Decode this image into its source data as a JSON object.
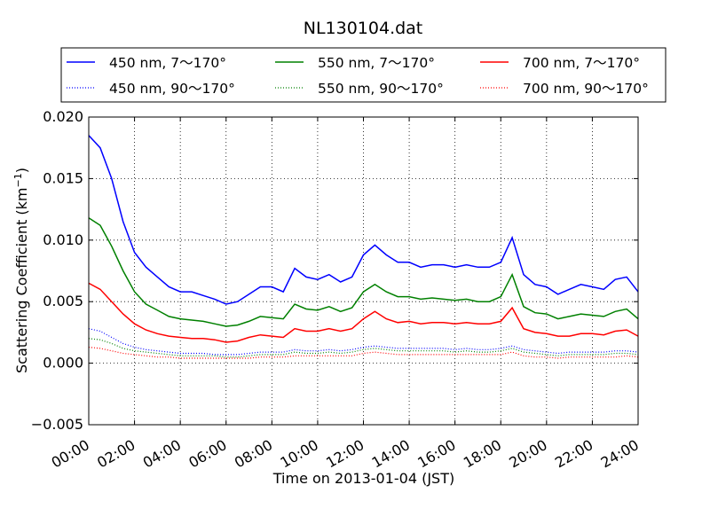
{
  "chart_data": {
    "type": "line",
    "title": "NL130104.dat",
    "xlabel": "Time on 2013-01-04 (JST)",
    "ylabel": "Scattering Coefficient (km",
    "ylabel_sup": "−1",
    "ylabel_close": ")",
    "xlim": [
      0,
      24
    ],
    "ylim": [
      -0.005,
      0.02
    ],
    "x_unit": "hours",
    "grid": true,
    "grid_style": "dotted",
    "legend_placement": "top, above plot, 3 columns",
    "x_ticks": [
      {
        "value": 0,
        "label": "00:00"
      },
      {
        "value": 2,
        "label": "02:00"
      },
      {
        "value": 4,
        "label": "04:00"
      },
      {
        "value": 6,
        "label": "06:00"
      },
      {
        "value": 8,
        "label": "08:00"
      },
      {
        "value": 10,
        "label": "10:00"
      },
      {
        "value": 12,
        "label": "12:00"
      },
      {
        "value": 14,
        "label": "14:00"
      },
      {
        "value": 16,
        "label": "16:00"
      },
      {
        "value": 18,
        "label": "18:00"
      },
      {
        "value": 20,
        "label": "20:00"
      },
      {
        "value": 22,
        "label": "22:00"
      },
      {
        "value": 24,
        "label": "24:00"
      }
    ],
    "y_ticks": [
      {
        "value": -0.005,
        "label": "−0.005"
      },
      {
        "value": 0,
        "label": "0.000"
      },
      {
        "value": 0.005,
        "label": "0.005"
      },
      {
        "value": 0.01,
        "label": "0.010"
      },
      {
        "value": 0.015,
        "label": "0.015"
      },
      {
        "value": 0.02,
        "label": "0.020"
      }
    ],
    "x": [
      0,
      0.5,
      1,
      1.5,
      2,
      2.5,
      3,
      3.5,
      4,
      4.5,
      5,
      5.5,
      6,
      6.5,
      7,
      7.5,
      8,
      8.5,
      9,
      9.5,
      10,
      10.5,
      11,
      11.5,
      12,
      12.5,
      13,
      13.5,
      14,
      14.5,
      15,
      15.5,
      16,
      16.5,
      17,
      17.5,
      18,
      18.5,
      19,
      19.5,
      20,
      20.5,
      21,
      21.5,
      22,
      22.5,
      23,
      23.5,
      24
    ],
    "series": [
      {
        "name": "450 nm, 7～170°",
        "color": "#0000ff",
        "style": "solid",
        "values": [
          0.0185,
          0.0175,
          0.015,
          0.0115,
          0.009,
          0.0078,
          0.007,
          0.0062,
          0.0058,
          0.0058,
          0.0055,
          0.0052,
          0.0048,
          0.005,
          0.0056,
          0.0062,
          0.0062,
          0.0058,
          0.0077,
          0.007,
          0.0068,
          0.0072,
          0.0066,
          0.007,
          0.0088,
          0.0096,
          0.0088,
          0.0082,
          0.0082,
          0.0078,
          0.008,
          0.008,
          0.0078,
          0.008,
          0.0078,
          0.0078,
          0.0082,
          0.0102,
          0.0072,
          0.0064,
          0.0062,
          0.0056,
          0.006,
          0.0064,
          0.0062,
          0.006,
          0.0068,
          0.007,
          0.0058
        ]
      },
      {
        "name": "450 nm, 90～170°",
        "color": "#0000ff",
        "style": "dotted",
        "values": [
          0.0028,
          0.0026,
          0.0021,
          0.0016,
          0.0013,
          0.0011,
          0.001,
          0.0009,
          0.0008,
          0.0008,
          0.0008,
          0.0007,
          0.0007,
          0.0007,
          0.0008,
          0.0009,
          0.0009,
          0.0009,
          0.0011,
          0.001,
          0.001,
          0.0011,
          0.001,
          0.0011,
          0.0013,
          0.0014,
          0.0013,
          0.0012,
          0.0012,
          0.0012,
          0.0012,
          0.0012,
          0.0011,
          0.0012,
          0.0011,
          0.0011,
          0.0012,
          0.0014,
          0.0011,
          0.001,
          0.0009,
          0.0008,
          0.0009,
          0.0009,
          0.0009,
          0.0009,
          0.001,
          0.001,
          0.0009
        ]
      },
      {
        "name": "550 nm, 7～170°",
        "color": "#008000",
        "style": "solid",
        "values": [
          0.0118,
          0.0112,
          0.0095,
          0.0075,
          0.0058,
          0.0048,
          0.0043,
          0.0038,
          0.0036,
          0.0035,
          0.0034,
          0.0032,
          0.003,
          0.0031,
          0.0034,
          0.0038,
          0.0037,
          0.0036,
          0.0048,
          0.0044,
          0.0043,
          0.0046,
          0.0042,
          0.0045,
          0.0058,
          0.0064,
          0.0058,
          0.0054,
          0.0054,
          0.0052,
          0.0053,
          0.0052,
          0.0051,
          0.0052,
          0.005,
          0.005,
          0.0054,
          0.0072,
          0.0046,
          0.0041,
          0.004,
          0.0036,
          0.0038,
          0.004,
          0.0039,
          0.0038,
          0.0042,
          0.0044,
          0.0036
        ]
      },
      {
        "name": "550 nm, 90～170°",
        "color": "#008000",
        "style": "dotted",
        "values": [
          0.002,
          0.0019,
          0.0016,
          0.0012,
          0.001,
          0.0009,
          0.0008,
          0.0007,
          0.0006,
          0.0006,
          0.0006,
          0.0006,
          0.0005,
          0.0005,
          0.0006,
          0.0007,
          0.0007,
          0.0007,
          0.0009,
          0.0008,
          0.0008,
          0.0009,
          0.0008,
          0.0009,
          0.0011,
          0.0012,
          0.0011,
          0.001,
          0.001,
          0.001,
          0.001,
          0.001,
          0.0009,
          0.001,
          0.0009,
          0.0009,
          0.001,
          0.0012,
          0.0009,
          0.0008,
          0.0007,
          0.0006,
          0.0007,
          0.0007,
          0.0007,
          0.0007,
          0.0008,
          0.0008,
          0.0007
        ]
      },
      {
        "name": "700 nm, 7～170°",
        "color": "#ff0000",
        "style": "solid",
        "values": [
          0.0065,
          0.006,
          0.005,
          0.004,
          0.0032,
          0.0027,
          0.0024,
          0.0022,
          0.0021,
          0.002,
          0.002,
          0.0019,
          0.0017,
          0.0018,
          0.0021,
          0.0023,
          0.0022,
          0.0021,
          0.0028,
          0.0026,
          0.0026,
          0.0028,
          0.0026,
          0.0028,
          0.0036,
          0.0042,
          0.0036,
          0.0033,
          0.0034,
          0.0032,
          0.0033,
          0.0033,
          0.0032,
          0.0033,
          0.0032,
          0.0032,
          0.0034,
          0.0045,
          0.0028,
          0.0025,
          0.0024,
          0.0022,
          0.0022,
          0.0024,
          0.0024,
          0.0023,
          0.0026,
          0.0027,
          0.0022
        ]
      },
      {
        "name": "700 nm, 90～170°",
        "color": "#ff0000",
        "style": "dotted",
        "values": [
          0.0013,
          0.0012,
          0.001,
          0.0008,
          0.0007,
          0.0006,
          0.0005,
          0.0005,
          0.0004,
          0.0004,
          0.0004,
          0.0004,
          0.0004,
          0.0004,
          0.0004,
          0.0005,
          0.0005,
          0.0005,
          0.0006,
          0.0006,
          0.0006,
          0.0006,
          0.0006,
          0.0006,
          0.0008,
          0.0009,
          0.0008,
          0.0007,
          0.0007,
          0.0007,
          0.0007,
          0.0007,
          0.0007,
          0.0007,
          0.0007,
          0.0007,
          0.0007,
          0.0009,
          0.0006,
          0.0005,
          0.0005,
          0.0004,
          0.0005,
          0.0005,
          0.0005,
          0.0005,
          0.0005,
          0.0006,
          0.0005
        ]
      }
    ]
  }
}
